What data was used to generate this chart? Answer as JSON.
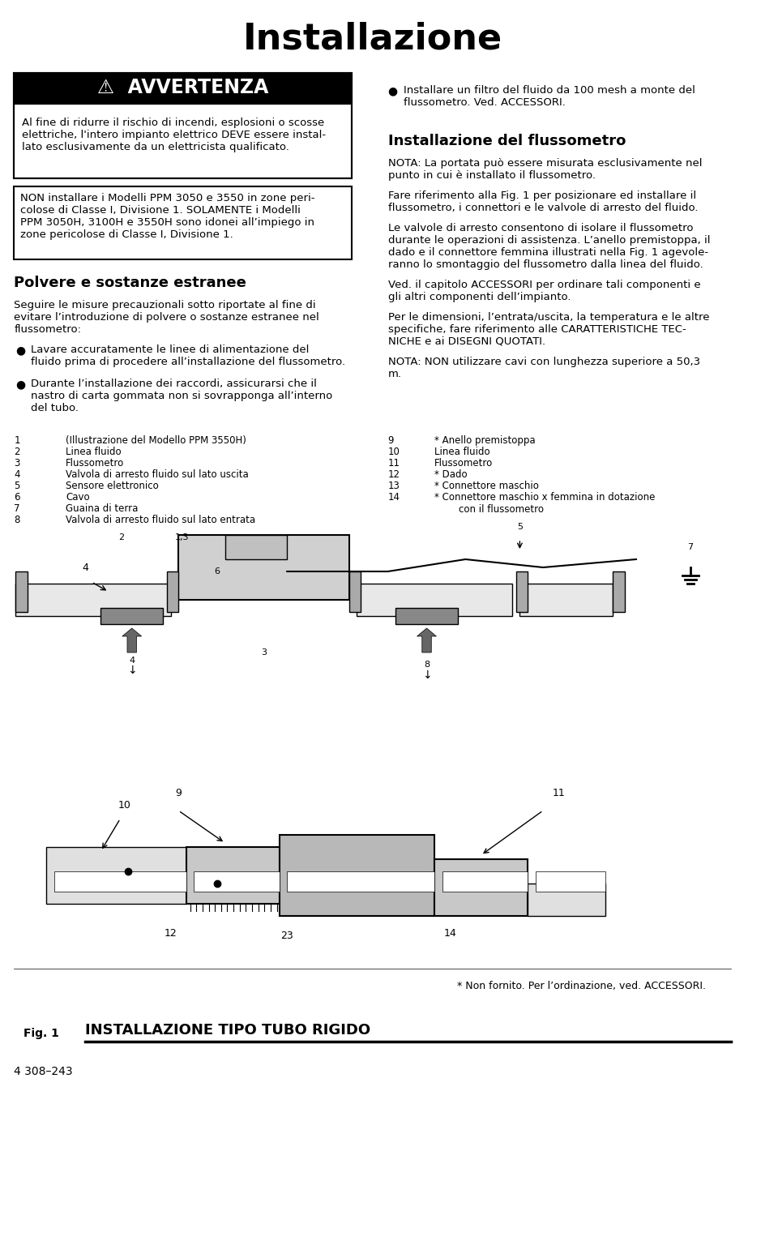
{
  "title": "Installazione",
  "bg_color": "#ffffff",
  "text_color": "#000000",
  "page_width": 9.6,
  "page_height": 15.52,
  "warning_box": {
    "header_text": "⚠  AVVERTENZA",
    "header_bg": "#000000",
    "header_text_color": "#ffffff",
    "body_text": "Al fine di ridurre il rischio di incendi, esplosioni o scosse\nelettriche, l'intero impianto elettrico DEVE essere instal-\nlato esclusivamente da un elettricista qualificato.",
    "border_color": "#000000"
  },
  "warning_note_box": {
    "text": "NON installare i Modelli PPM 3050 e 3550 in zone peri-\ncolose di Classe I, Divisione 1. SOLAMENTE i Modelli\nPPM 3050H, 3100H e 3550H sono idonei all’impiego in\nzone pericolose di Classe I, Divisione 1.",
    "border_color": "#000000"
  },
  "right_col_bullet": "Installare un filtro del fluido da 100 mesh a monte del\nflussometro. Ved. ACCESSORI.",
  "right_col_section_title": "Installazione del flussometro",
  "right_col_paragraphs": [
    "NOTA: La portata può essere misurata esclusivamente nel\npunto in cui è installato il flussometro.",
    "Fare riferimento alla Fig. 1 per posizionare ed installare il\nflussometro, i connettori e le valvole di arresto del fluido.",
    "Le valvole di arresto consentono di isolare il flussometro\ndurante le operazioni di assistenza. L’anello premistoppa, il\ndado e il connettore femmina illustrati nella Fig. 1 agevole-\nranno lo smontaggio del flussometro dalla linea del fluido.",
    "Ved. il capitolo ACCESSORI per ordinare tali componenti e\ngli altri componenti dell’impianto.",
    "Per le dimensioni, l’entrata/uscita, la temperatura e le altre\nspecifiche, fare riferimento alle CARATTERISTICHE TEC-\nNICHE e ai DISEGNI QUOTATI.",
    "NOTA: NON utilizzare cavi con lunghezza superiore a 50,3\nm."
  ],
  "left_col_section_title": "Polvere e sostanze estranee",
  "left_col_intro": "Seguire le misure precauzionali sotto riportate al fine di\nevitare l’introduzione di polvere o sostanze estranee nel\nflussometro:",
  "left_col_bullets": [
    "Lavare accuratamente le linee di alimentazione del\nfluido prima di procedere all’installazione del flussometro.",
    "Durante l’installazione dei raccordi, assicurarsi che il\nnastro di carta gommata non si sovrapponga all’interno\ndel tubo."
  ],
  "parts_left": [
    [
      "1",
      "(Illustrazione del Modello PPM 3550H)"
    ],
    [
      "2",
      "Linea fluido"
    ],
    [
      "3",
      "Flussometro"
    ],
    [
      "4",
      "Valvola di arresto fluido sul lato uscita"
    ],
    [
      "5",
      "Sensore elettronico"
    ],
    [
      "6",
      "Cavo"
    ],
    [
      "7",
      "Guaina di terra"
    ],
    [
      "8",
      "Valvola di arresto fluido sul lato entrata"
    ]
  ],
  "parts_right": [
    [
      "9",
      "* Anello premistoppa"
    ],
    [
      "10",
      "Linea fluido"
    ],
    [
      "11",
      "Flussometro"
    ],
    [
      "12",
      "* Dado"
    ],
    [
      "13",
      "* Connettore maschio"
    ],
    [
      "14",
      "* Connettore maschio x femmina in dotazione\n        con il flussometro"
    ]
  ],
  "footnote": "* Non fornito. Per l’ordinazione, ved. ACCESSORI.",
  "fig_label": "Fig. 1",
  "fig_title": "INSTALLAZIONE TIPO TUBO RIGIDO",
  "doc_number": "4 308–243"
}
